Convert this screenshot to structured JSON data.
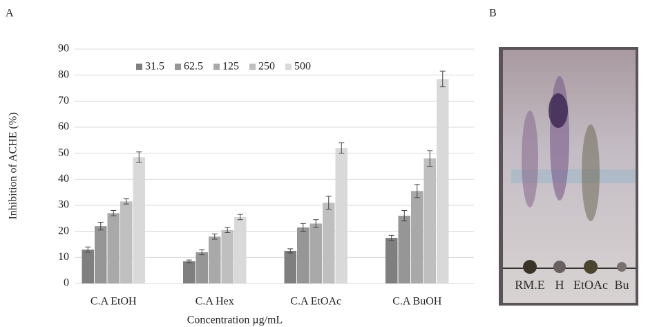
{
  "panel_a": "A",
  "panel_b": "B",
  "chart_data": {
    "type": "bar",
    "xlabel": "Concentration µg/mL",
    "ylabel": "Inhibition of ACHE (%)",
    "categories": [
      "C.A EtOH",
      "C.A Hex",
      "C.A EtOAc",
      "C.A BuOH"
    ],
    "series": [
      {
        "name": "31.5",
        "color": "#7f7f7f",
        "values": [
          13,
          8.5,
          12.5,
          17.5
        ],
        "errors": [
          1,
          0.5,
          0.8,
          1
        ]
      },
      {
        "name": "62.5",
        "color": "#969696",
        "values": [
          22,
          12,
          21.5,
          26
        ],
        "errors": [
          1.5,
          1,
          1.5,
          2
        ]
      },
      {
        "name": "125",
        "color": "#a9a9a9",
        "values": [
          27,
          18,
          23,
          35.5
        ],
        "errors": [
          1,
          1,
          1.5,
          2.5
        ]
      },
      {
        "name": "250",
        "color": "#bfbfbf",
        "values": [
          31.5,
          20.5,
          31,
          48
        ],
        "errors": [
          1,
          1,
          2.5,
          3
        ]
      },
      {
        "name": "500",
        "color": "#d9d9d9",
        "values": [
          48.5,
          25.5,
          52,
          78.5
        ],
        "errors": [
          2,
          1,
          2,
          3
        ]
      }
    ],
    "ylim": [
      0,
      90
    ],
    "yticks": [
      0,
      10,
      20,
      30,
      40,
      50,
      60,
      70,
      80,
      90
    ],
    "grid": true,
    "legend": "top"
  },
  "plate_labels": [
    "RM.E",
    "H",
    "EtOAc",
    "Bu"
  ]
}
